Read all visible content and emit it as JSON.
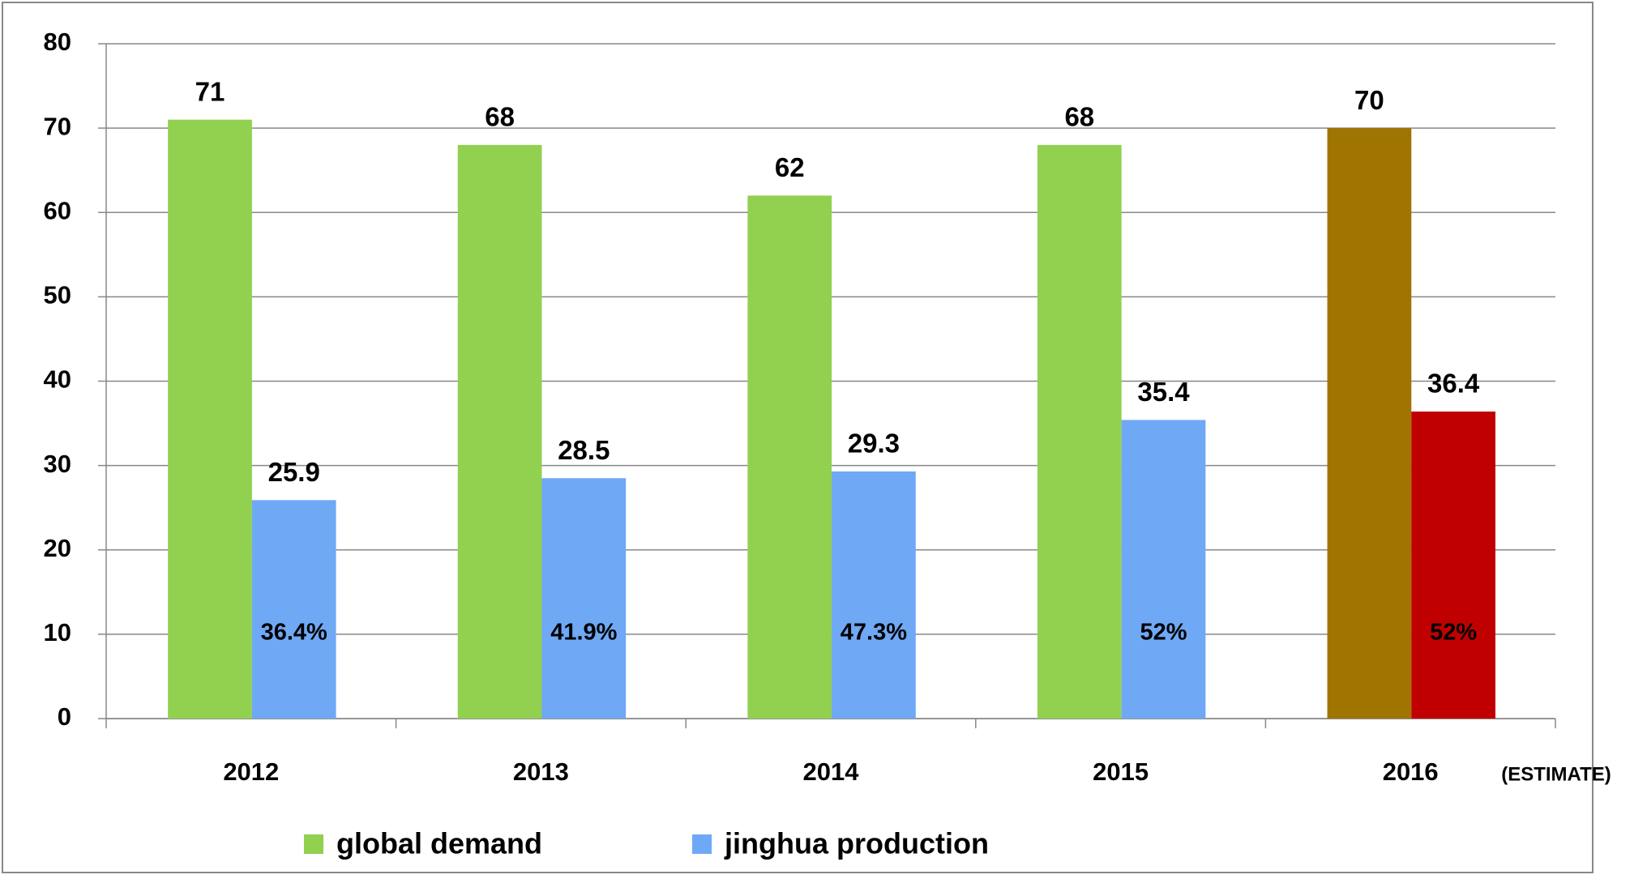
{
  "chart_data": {
    "type": "bar",
    "categories": [
      "2012",
      "2013",
      "2014",
      "2015",
      "2016"
    ],
    "series": [
      {
        "name": "global demand",
        "color": "#92d050",
        "point_colors": [
          "#92d050",
          "#92d050",
          "#92d050",
          "#92d050",
          "#a07400"
        ],
        "values": [
          71,
          68,
          62,
          68,
          70
        ]
      },
      {
        "name": "jinghua production",
        "color": "#6fa8f5",
        "point_colors": [
          "#6fa8f5",
          "#6fa8f5",
          "#6fa8f5",
          "#6fa8f5",
          "#c00000"
        ],
        "values": [
          25.9,
          28.5,
          29.3,
          35.4,
          36.4
        ]
      }
    ],
    "share_labels": [
      "36.4%",
      "41.9%",
      "47.3%",
      "52%",
      "52%"
    ],
    "annotation": "(ESTIMATE)",
    "ylim": [
      0,
      80
    ],
    "yticks": [
      0,
      10,
      20,
      30,
      40,
      50,
      60,
      70,
      80
    ],
    "grid": true,
    "legend": "bottom"
  }
}
